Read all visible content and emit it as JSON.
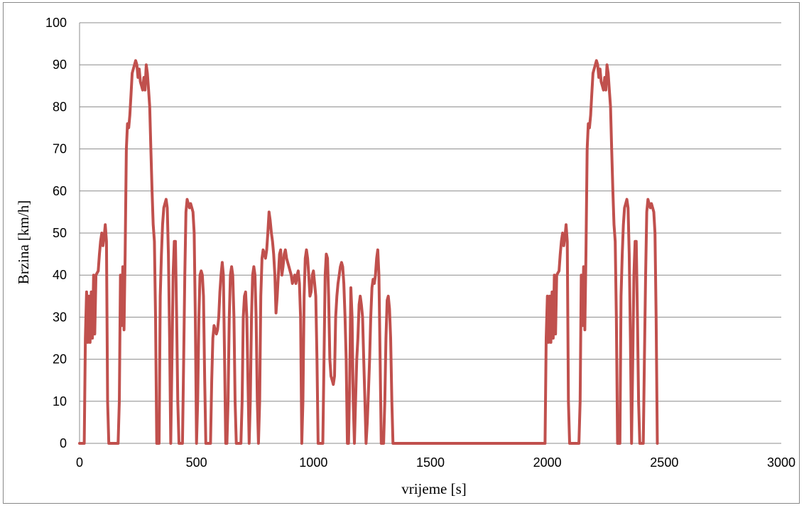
{
  "chart_data": {
    "type": "line",
    "xlabel": "vrijeme [s]",
    "ylabel": "Brzina [km/h]",
    "xlim": [
      0,
      3000
    ],
    "ylim": [
      0,
      100
    ],
    "x_ticks": [
      0,
      500,
      1000,
      1500,
      2000,
      2500,
      3000
    ],
    "y_ticks": [
      0,
      10,
      20,
      30,
      40,
      50,
      60,
      70,
      80,
      90,
      100
    ],
    "grid": "horizontal",
    "legend": "none",
    "series_color": "#c0504d",
    "series": [
      {
        "points": [
          [
            0,
            0
          ],
          [
            20,
            0
          ],
          [
            25,
            25
          ],
          [
            30,
            36
          ],
          [
            35,
            24
          ],
          [
            40,
            35
          ],
          [
            45,
            24
          ],
          [
            50,
            36
          ],
          [
            55,
            25
          ],
          [
            60,
            40
          ],
          [
            65,
            26
          ],
          [
            70,
            40
          ],
          [
            80,
            41
          ],
          [
            85,
            45
          ],
          [
            90,
            48
          ],
          [
            95,
            50
          ],
          [
            100,
            47
          ],
          [
            105,
            49
          ],
          [
            110,
            52
          ],
          [
            115,
            48
          ],
          [
            120,
            10
          ],
          [
            125,
            0
          ],
          [
            165,
            0
          ],
          [
            170,
            10
          ],
          [
            175,
            40
          ],
          [
            180,
            28
          ],
          [
            185,
            42
          ],
          [
            190,
            27
          ],
          [
            195,
            45
          ],
          [
            200,
            70
          ],
          [
            205,
            76
          ],
          [
            210,
            75
          ],
          [
            215,
            78
          ],
          [
            220,
            83
          ],
          [
            225,
            88
          ],
          [
            230,
            89
          ],
          [
            240,
            91
          ],
          [
            245,
            90
          ],
          [
            250,
            87
          ],
          [
            255,
            89
          ],
          [
            260,
            86
          ],
          [
            265,
            85
          ],
          [
            270,
            84
          ],
          [
            275,
            87
          ],
          [
            280,
            84
          ],
          [
            285,
            90
          ],
          [
            290,
            88
          ],
          [
            295,
            84
          ],
          [
            300,
            80
          ],
          [
            305,
            70
          ],
          [
            310,
            60
          ],
          [
            315,
            52
          ],
          [
            320,
            48
          ],
          [
            325,
            30
          ],
          [
            330,
            0
          ],
          [
            340,
            0
          ],
          [
            345,
            35
          ],
          [
            350,
            45
          ],
          [
            355,
            52
          ],
          [
            360,
            56
          ],
          [
            365,
            57
          ],
          [
            370,
            58
          ],
          [
            375,
            56
          ],
          [
            380,
            45
          ],
          [
            385,
            25
          ],
          [
            390,
            0
          ],
          [
            395,
            20
          ],
          [
            400,
            40
          ],
          [
            405,
            48
          ],
          [
            410,
            48
          ],
          [
            415,
            30
          ],
          [
            420,
            10
          ],
          [
            425,
            0
          ],
          [
            440,
            0
          ],
          [
            445,
            20
          ],
          [
            450,
            40
          ],
          [
            455,
            55
          ],
          [
            460,
            58
          ],
          [
            465,
            57
          ],
          [
            470,
            56
          ],
          [
            475,
            57
          ],
          [
            480,
            56
          ],
          [
            485,
            55
          ],
          [
            490,
            50
          ],
          [
            495,
            30
          ],
          [
            500,
            0
          ],
          [
            505,
            10
          ],
          [
            510,
            30
          ],
          [
            515,
            40
          ],
          [
            520,
            41
          ],
          [
            525,
            40
          ],
          [
            530,
            35
          ],
          [
            535,
            15
          ],
          [
            540,
            0
          ],
          [
            560,
            0
          ],
          [
            565,
            15
          ],
          [
            570,
            25
          ],
          [
            575,
            28
          ],
          [
            580,
            27
          ],
          [
            585,
            26
          ],
          [
            590,
            27
          ],
          [
            595,
            30
          ],
          [
            600,
            36
          ],
          [
            605,
            40
          ],
          [
            610,
            43
          ],
          [
            615,
            40
          ],
          [
            620,
            20
          ],
          [
            625,
            0
          ],
          [
            630,
            0
          ],
          [
            635,
            10
          ],
          [
            640,
            30
          ],
          [
            645,
            40
          ],
          [
            650,
            42
          ],
          [
            655,
            40
          ],
          [
            660,
            30
          ],
          [
            665,
            10
          ],
          [
            670,
            0
          ],
          [
            690,
            0
          ],
          [
            695,
            10
          ],
          [
            700,
            30
          ],
          [
            705,
            35
          ],
          [
            710,
            36
          ],
          [
            715,
            30
          ],
          [
            720,
            15
          ],
          [
            725,
            0
          ],
          [
            730,
            10
          ],
          [
            735,
            30
          ],
          [
            740,
            40
          ],
          [
            745,
            42
          ],
          [
            750,
            40
          ],
          [
            755,
            30
          ],
          [
            760,
            10
          ],
          [
            765,
            0
          ],
          [
            770,
            10
          ],
          [
            775,
            35
          ],
          [
            780,
            44
          ],
          [
            785,
            46
          ],
          [
            790,
            45
          ],
          [
            795,
            44
          ],
          [
            800,
            46
          ],
          [
            805,
            50
          ],
          [
            810,
            55
          ],
          [
            815,
            53
          ],
          [
            820,
            50
          ],
          [
            825,
            48
          ],
          [
            830,
            45
          ],
          [
            835,
            40
          ],
          [
            840,
            31
          ],
          [
            845,
            35
          ],
          [
            850,
            40
          ],
          [
            855,
            45
          ],
          [
            860,
            46
          ],
          [
            865,
            40
          ],
          [
            870,
            42
          ],
          [
            875,
            45
          ],
          [
            880,
            46
          ],
          [
            885,
            44
          ],
          [
            890,
            43
          ],
          [
            895,
            42
          ],
          [
            900,
            41
          ],
          [
            905,
            40
          ],
          [
            910,
            38
          ],
          [
            915,
            39
          ],
          [
            920,
            40
          ],
          [
            925,
            38
          ],
          [
            930,
            40
          ],
          [
            935,
            41
          ],
          [
            940,
            38
          ],
          [
            945,
            30
          ],
          [
            950,
            0
          ],
          [
            955,
            10
          ],
          [
            960,
            35
          ],
          [
            965,
            44
          ],
          [
            970,
            46
          ],
          [
            975,
            44
          ],
          [
            980,
            40
          ],
          [
            985,
            35
          ],
          [
            990,
            36
          ],
          [
            995,
            40
          ],
          [
            1000,
            41
          ],
          [
            1005,
            38
          ],
          [
            1010,
            35
          ],
          [
            1015,
            20
          ],
          [
            1020,
            0
          ],
          [
            1040,
            0
          ],
          [
            1045,
            20
          ],
          [
            1050,
            40
          ],
          [
            1055,
            45
          ],
          [
            1060,
            44
          ],
          [
            1065,
            35
          ],
          [
            1070,
            20
          ],
          [
            1075,
            16
          ],
          [
            1080,
            15
          ],
          [
            1085,
            14
          ],
          [
            1090,
            16
          ],
          [
            1095,
            30
          ],
          [
            1100,
            35
          ],
          [
            1105,
            38
          ],
          [
            1110,
            40
          ],
          [
            1115,
            42
          ],
          [
            1120,
            43
          ],
          [
            1125,
            42
          ],
          [
            1130,
            38
          ],
          [
            1135,
            30
          ],
          [
            1140,
            20
          ],
          [
            1145,
            0
          ],
          [
            1150,
            0
          ],
          [
            1155,
            15
          ],
          [
            1160,
            37
          ],
          [
            1165,
            30
          ],
          [
            1170,
            10
          ],
          [
            1175,
            0
          ],
          [
            1180,
            10
          ],
          [
            1185,
            20
          ],
          [
            1190,
            25
          ],
          [
            1195,
            33
          ],
          [
            1200,
            35
          ],
          [
            1205,
            33
          ],
          [
            1210,
            30
          ],
          [
            1215,
            20
          ],
          [
            1220,
            10
          ],
          [
            1225,
            0
          ],
          [
            1230,
            5
          ],
          [
            1235,
            12
          ],
          [
            1240,
            20
          ],
          [
            1245,
            30
          ],
          [
            1250,
            37
          ],
          [
            1255,
            39
          ],
          [
            1260,
            38
          ],
          [
            1265,
            40
          ],
          [
            1270,
            44
          ],
          [
            1275,
            46
          ],
          [
            1280,
            40
          ],
          [
            1285,
            20
          ],
          [
            1290,
            0
          ],
          [
            1300,
            0
          ],
          [
            1305,
            10
          ],
          [
            1310,
            25
          ],
          [
            1315,
            34
          ],
          [
            1320,
            35
          ],
          [
            1325,
            32
          ],
          [
            1330,
            25
          ],
          [
            1335,
            10
          ],
          [
            1340,
            0
          ],
          [
            1990,
            0
          ],
          [
            1995,
            25
          ],
          [
            2000,
            35
          ],
          [
            2005,
            24
          ],
          [
            2010,
            35
          ],
          [
            2015,
            24
          ],
          [
            2020,
            36
          ],
          [
            2025,
            25
          ],
          [
            2030,
            40
          ],
          [
            2035,
            26
          ],
          [
            2040,
            40
          ],
          [
            2050,
            41
          ],
          [
            2055,
            45
          ],
          [
            2060,
            48
          ],
          [
            2065,
            50
          ],
          [
            2070,
            47
          ],
          [
            2075,
            49
          ],
          [
            2080,
            52
          ],
          [
            2085,
            48
          ],
          [
            2090,
            10
          ],
          [
            2095,
            0
          ],
          [
            2135,
            0
          ],
          [
            2140,
            10
          ],
          [
            2145,
            40
          ],
          [
            2150,
            28
          ],
          [
            2155,
            42
          ],
          [
            2160,
            27
          ],
          [
            2165,
            45
          ],
          [
            2170,
            70
          ],
          [
            2175,
            76
          ],
          [
            2180,
            75
          ],
          [
            2185,
            78
          ],
          [
            2190,
            83
          ],
          [
            2195,
            88
          ],
          [
            2200,
            89
          ],
          [
            2210,
            91
          ],
          [
            2215,
            90
          ],
          [
            2220,
            87
          ],
          [
            2225,
            89
          ],
          [
            2230,
            86
          ],
          [
            2235,
            85
          ],
          [
            2240,
            84
          ],
          [
            2245,
            87
          ],
          [
            2250,
            84
          ],
          [
            2255,
            90
          ],
          [
            2260,
            88
          ],
          [
            2265,
            84
          ],
          [
            2270,
            80
          ],
          [
            2275,
            70
          ],
          [
            2280,
            60
          ],
          [
            2285,
            52
          ],
          [
            2290,
            48
          ],
          [
            2295,
            30
          ],
          [
            2300,
            0
          ],
          [
            2310,
            0
          ],
          [
            2315,
            35
          ],
          [
            2320,
            45
          ],
          [
            2325,
            52
          ],
          [
            2330,
            56
          ],
          [
            2335,
            57
          ],
          [
            2340,
            58
          ],
          [
            2345,
            56
          ],
          [
            2350,
            45
          ],
          [
            2355,
            25
          ],
          [
            2360,
            0
          ],
          [
            2365,
            20
          ],
          [
            2370,
            40
          ],
          [
            2375,
            48
          ],
          [
            2380,
            48
          ],
          [
            2385,
            30
          ],
          [
            2390,
            10
          ],
          [
            2395,
            0
          ],
          [
            2410,
            0
          ],
          [
            2415,
            20
          ],
          [
            2420,
            40
          ],
          [
            2425,
            55
          ],
          [
            2430,
            58
          ],
          [
            2435,
            57
          ],
          [
            2440,
            56
          ],
          [
            2445,
            57
          ],
          [
            2450,
            56
          ],
          [
            2455,
            55
          ],
          [
            2460,
            50
          ],
          [
            2465,
            30
          ],
          [
            2470,
            0
          ]
        ]
      }
    ]
  }
}
